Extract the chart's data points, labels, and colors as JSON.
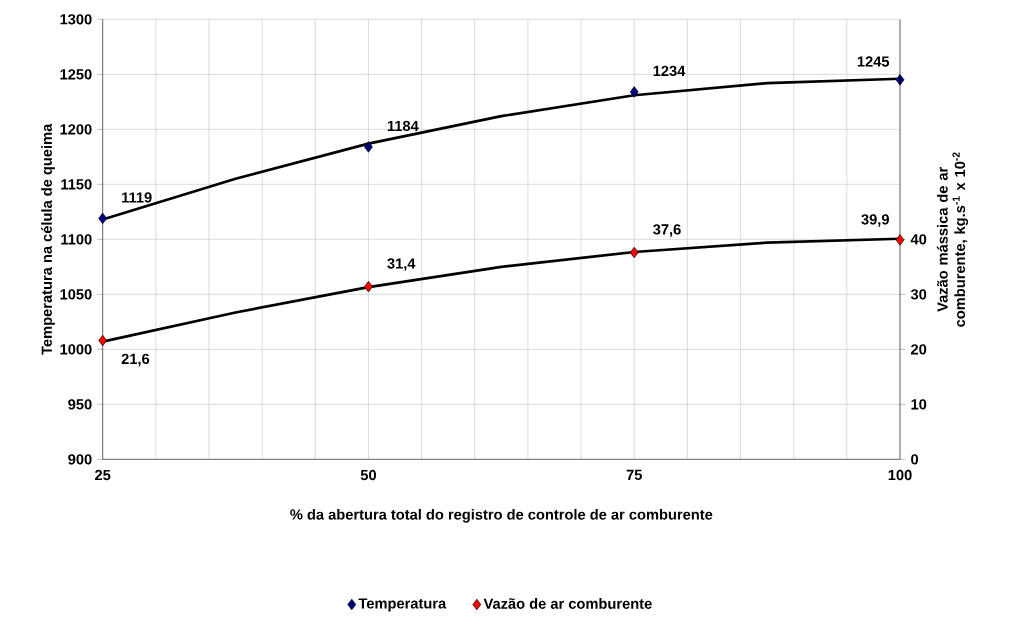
{
  "chart_data": {
    "type": "scatter",
    "xlabel": "% da abertura total do registro de controle de ar comburente",
    "ylabel": "Temperatura na célula de queima",
    "y2label": "Vazão mássica de ar comburente, kg.s$^{-1}$ x 10$^{-2}$",
    "x": [
      25,
      50,
      75,
      100
    ],
    "xlim": [
      25,
      100
    ],
    "xticks": [
      25,
      {
        "value": 30,
        "label": null
      },
      {
        "value": 35,
        "label": null
      },
      {
        "value": 40,
        "label": null
      },
      {
        "value": 45,
        "label": null
      },
      50,
      {
        "value": 55,
        "label": null
      },
      {
        "value": 60,
        "label": null
      },
      {
        "value": 65,
        "label": null
      },
      {
        "value": 70,
        "label": null
      },
      75,
      {
        "value": 80,
        "label": null
      },
      {
        "value": 85,
        "label": null
      },
      {
        "value": 90,
        "label": null
      },
      {
        "value": 95,
        "label": null
      },
      100
    ],
    "ylim": [
      900,
      1300
    ],
    "yticks": [
      900,
      950,
      1000,
      1050,
      1100,
      1150,
      1200,
      1250,
      1300
    ],
    "y2lim": [
      0,
      80
    ],
    "y2ticks": [
      0,
      10,
      20,
      30,
      40
    ],
    "grid": true,
    "legend": "bottom",
    "marker": "diamond",
    "series": [
      {
        "name": "Temperatura",
        "color": "#000080",
        "values": [
          1119,
          1184,
          1234,
          1245
        ],
        "value_labels": [
          "1119",
          "1184",
          "1234",
          "1245"
        ]
      },
      {
        "name": "Vazão de ar comburente",
        "color": "#ff0000",
        "axis": "y2",
        "values": [
          21.6,
          31.4,
          37.6,
          39.9
        ],
        "value_labels": [
          "21,6",
          "31,4",
          "37,6",
          "39,9"
        ]
      },
      {
        "type": "line",
        "color": "#000000",
        "marker": "none",
        "x": [
          25,
          37.5,
          50,
          62.5,
          75,
          87.5,
          100
        ],
        "values": [
          1118,
          1155,
          1187,
          1212,
          1231,
          1242,
          1246
        ]
      },
      {
        "type": "line",
        "color": "#000000",
        "marker": "none",
        "axis": "y2",
        "x": [
          25,
          37.5,
          50,
          62.5,
          75,
          87.5,
          100
        ],
        "values": [
          21.4,
          26.7,
          31.3,
          35.0,
          37.7,
          39.4,
          40.1
        ]
      }
    ]
  }
}
